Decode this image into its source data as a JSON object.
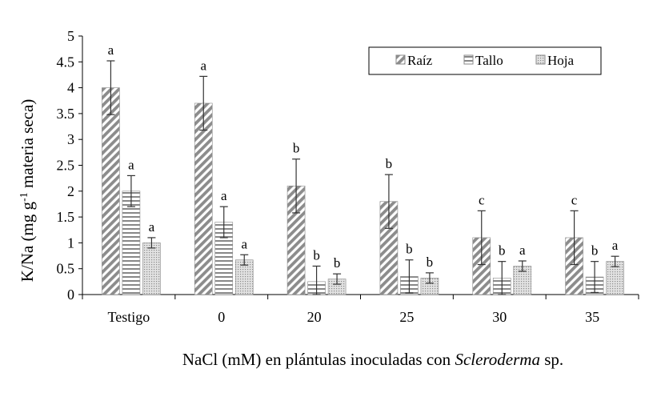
{
  "chart_data": {
    "type": "bar",
    "ylabel_main": "K/Na (mg g",
    "ylabel_sup": "-1",
    "ylabel_tail": " materia seca)",
    "xlabel_main": "NaCl (mM) en plántulas inoculadas con ",
    "xlabel_italic": "Scleroderma",
    "xlabel_tail": " sp.",
    "categories": [
      "Testigo",
      "0",
      "20",
      "25",
      "30",
      "35"
    ],
    "ylim": [
      0,
      5
    ],
    "yticks": [
      "0",
      "0.5",
      "1",
      "1.5",
      "2",
      "2.5",
      "3",
      "3.5",
      "4",
      "4.5",
      "5"
    ],
    "legend_position": "top-right",
    "series": [
      {
        "name": "Raíz",
        "pattern": "diagonal",
        "values": [
          4.0,
          3.7,
          2.1,
          1.8,
          1.1,
          1.1
        ],
        "errors": [
          0.52,
          0.52,
          0.52,
          0.52,
          0.52,
          0.52
        ],
        "letters": [
          "a",
          "a",
          "b",
          "b",
          "c",
          "c"
        ]
      },
      {
        "name": "Tallo",
        "pattern": "horizontal",
        "values": [
          2.0,
          1.4,
          0.25,
          0.35,
          0.32,
          0.34
        ],
        "errors": [
          0.3,
          0.3,
          0.3,
          0.32,
          0.32,
          0.3
        ],
        "letters": [
          "a",
          "a",
          "b",
          "b",
          "b",
          "b"
        ]
      },
      {
        "name": "Hoja",
        "pattern": "dots",
        "values": [
          1.0,
          0.67,
          0.3,
          0.32,
          0.55,
          0.64
        ],
        "errors": [
          0.1,
          0.1,
          0.1,
          0.1,
          0.1,
          0.1
        ],
        "letters": [
          "a",
          "a",
          "b",
          "b",
          "a",
          "a"
        ]
      }
    ],
    "colors": {
      "axis": "#000000",
      "stroke": "#888888",
      "hatch": "#8c8c8c",
      "errorbar": "#333333"
    }
  }
}
